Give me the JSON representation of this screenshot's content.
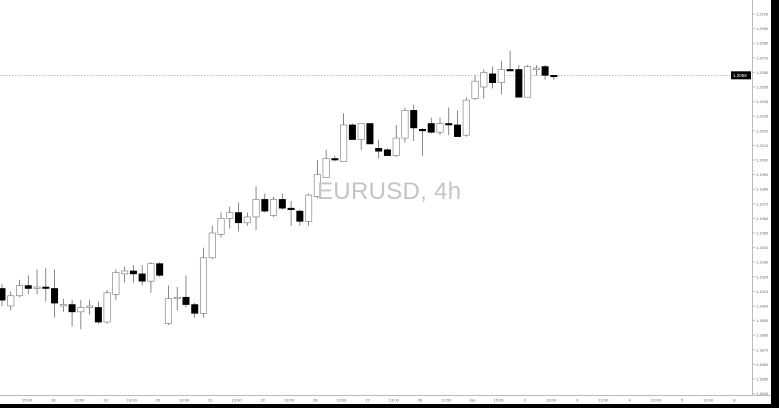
{
  "chart_data": {
    "type": "candlestick",
    "watermark": "EURUSD, 4h",
    "symbol": "EURUSD",
    "timeframe": "4h",
    "ylim": [
      1.1833,
      1.21
    ],
    "y_ticks": [
      1.21,
      1.209,
      1.208,
      1.207,
      1.206,
      1.205,
      1.204,
      1.203,
      1.202,
      1.201,
      1.2,
      1.199,
      1.198,
      1.197,
      1.196,
      1.195,
      1.194,
      1.193,
      1.192,
      1.191,
      1.19,
      1.189,
      1.188,
      1.187,
      1.186,
      1.185,
      1.184
    ],
    "x_tick_labels": [
      "15:00",
      "18",
      "13:00",
      "19",
      "13:00",
      "20",
      "13:00",
      "21",
      "13:00",
      "22",
      "13:00",
      "26",
      "13:00",
      "27",
      "13:00",
      "28",
      "13:00",
      "Jan",
      "15:00",
      "2",
      "13:00",
      "3",
      "13:00",
      "4",
      "13:00",
      "5",
      "13:00",
      "8"
    ],
    "current_price": 1.2058,
    "current_price_label": "1.2058",
    "colors": {
      "bull_body": "#ffffff",
      "bear_body": "#000000",
      "wick": "#555555",
      "price_line": "#999999",
      "price_label_bg": "#000000"
    },
    "grid": false,
    "candles": [
      [
        1.1912,
        1.1915,
        1.19,
        1.1904
      ],
      [
        1.19,
        1.191,
        1.1897,
        1.1907
      ],
      [
        1.1907,
        1.1918,
        1.1906,
        1.1914
      ],
      [
        1.1914,
        1.1921,
        1.1908,
        1.1912
      ],
      [
        1.1912,
        1.1925,
        1.1908,
        1.1913
      ],
      [
        1.1913,
        1.1926,
        1.1903,
        1.1912
      ],
      [
        1.1912,
        1.1925,
        1.1892,
        1.1902
      ],
      [
        1.19,
        1.1905,
        1.1896,
        1.1901
      ],
      [
        1.1901,
        1.1904,
        1.1886,
        1.1896
      ],
      [
        1.1896,
        1.1904,
        1.1884,
        1.1899
      ],
      [
        1.1899,
        1.1904,
        1.1894,
        1.19
      ],
      [
        1.1899,
        1.1903,
        1.1888,
        1.1889
      ],
      [
        1.1889,
        1.1911,
        1.1888,
        1.1909
      ],
      [
        1.1908,
        1.1925,
        1.1904,
        1.1923
      ],
      [
        1.1922,
        1.1927,
        1.1916,
        1.1924
      ],
      [
        1.1924,
        1.1928,
        1.1916,
        1.1922
      ],
      [
        1.1922,
        1.1928,
        1.1914,
        1.1917
      ],
      [
        1.1917,
        1.193,
        1.1909,
        1.1929
      ],
      [
        1.1929,
        1.193,
        1.192,
        1.1921
      ],
      [
        1.1888,
        1.1914,
        1.1887,
        1.1905
      ],
      [
        1.1905,
        1.1913,
        1.1897,
        1.1906
      ],
      [
        1.1906,
        1.1921,
        1.1899,
        1.1901
      ],
      [
        1.1901,
        1.1902,
        1.1892,
        1.1895
      ],
      [
        1.1895,
        1.194,
        1.1892,
        1.1933
      ],
      [
        1.1933,
        1.1955,
        1.1932,
        1.195
      ],
      [
        1.1949,
        1.1964,
        1.1947,
        1.196
      ],
      [
        1.196,
        1.1968,
        1.1953,
        1.1964
      ],
      [
        1.1964,
        1.1971,
        1.1951,
        1.1957
      ],
      [
        1.1957,
        1.1964,
        1.1955,
        1.1961
      ],
      [
        1.1961,
        1.1982,
        1.1952,
        1.1973
      ],
      [
        1.1973,
        1.1977,
        1.1964,
        1.1965
      ],
      [
        1.1962,
        1.1975,
        1.1961,
        1.1973
      ],
      [
        1.1973,
        1.1977,
        1.1966,
        1.1967
      ],
      [
        1.1967,
        1.1972,
        1.1955,
        1.1966
      ],
      [
        1.1965,
        1.1966,
        1.1955,
        1.1958
      ],
      [
        1.1958,
        1.1977,
        1.1955,
        1.1976
      ],
      [
        1.1975,
        1.2,
        1.1974,
        1.199
      ],
      [
        1.1988,
        1.2007,
        1.1988,
        1.2001
      ],
      [
        1.2001,
        1.2003,
        1.1999,
        1.2
      ],
      [
        1.1999,
        1.2032,
        1.1999,
        1.2024
      ],
      [
        1.2024,
        1.2025,
        1.2014,
        1.2014
      ],
      [
        1.2014,
        1.2025,
        1.2007,
        1.2025
      ],
      [
        1.2025,
        1.2025,
        1.2011,
        1.2011
      ],
      [
        1.2008,
        1.2014,
        1.2001,
        1.2006
      ],
      [
        1.2007,
        1.2008,
        1.2003,
        1.2003
      ],
      [
        1.2003,
        1.2024,
        1.2002,
        1.2015
      ],
      [
        1.2015,
        1.2036,
        1.2012,
        1.2034
      ],
      [
        1.2034,
        1.2038,
        1.2013,
        1.2022
      ],
      [
        1.2021,
        1.2022,
        1.2003,
        1.202
      ],
      [
        1.2025,
        1.2029,
        1.2018,
        1.2019
      ],
      [
        1.2019,
        1.2029,
        1.2017,
        1.2025
      ],
      [
        1.2025,
        1.2036,
        1.2017,
        1.2024
      ],
      [
        1.2024,
        1.2034,
        1.2016,
        1.2016
      ],
      [
        1.2017,
        1.2043,
        1.2016,
        1.2041
      ],
      [
        1.2042,
        1.2058,
        1.2041,
        1.2054
      ],
      [
        1.205,
        1.2062,
        1.2042,
        1.206
      ],
      [
        1.2059,
        1.2064,
        1.2049,
        1.2053
      ],
      [
        1.2053,
        1.2068,
        1.2045,
        1.2062
      ],
      [
        1.2062,
        1.2075,
        1.2061,
        1.2061
      ],
      [
        1.2062,
        1.2065,
        1.2043,
        1.2043
      ],
      [
        1.2043,
        1.2065,
        1.2043,
        1.2064
      ],
      [
        1.2062,
        1.2065,
        1.2058,
        1.2063
      ],
      [
        1.2064,
        1.2065,
        1.2055,
        1.2058
      ],
      [
        1.2058,
        1.2058,
        1.2055,
        1.2057
      ]
    ]
  }
}
